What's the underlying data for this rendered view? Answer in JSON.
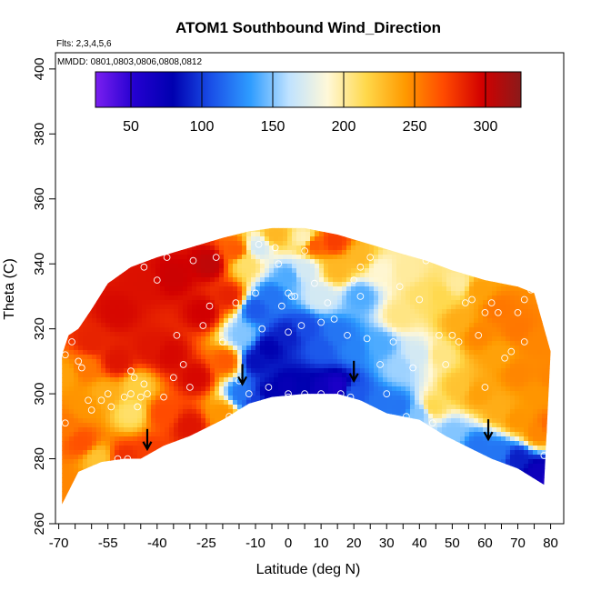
{
  "chart_data": {
    "type": "heatmap",
    "title": "ATOM1 Southbound Wind_Direction",
    "notes": [
      "Flts: 2,3,4,5,6",
      "MMDD: 0801,0803,0806,0808,0812"
    ],
    "xlabel": "Latitude (deg N)",
    "ylabel": "Theta (C)",
    "xlim": [
      -71,
      84
    ],
    "ylim": [
      260,
      405
    ],
    "x_ticks": [
      -70,
      -55,
      -40,
      -25,
      -10,
      0,
      10,
      20,
      30,
      40,
      50,
      60,
      70,
      80
    ],
    "x_minor_every": 5,
    "y_ticks": [
      260,
      280,
      300,
      320,
      340,
      360,
      380,
      400
    ],
    "colorbar": {
      "range": [
        25,
        325
      ],
      "ticks": [
        50,
        100,
        150,
        200,
        250,
        300
      ],
      "palette": [
        "#7a1ff0",
        "#2400d0",
        "#0000b0",
        "#1a50e8",
        "#2e9cff",
        "#bfe2ff",
        "#fff8d8",
        "#ffd84a",
        "#ff9a00",
        "#ff4a00",
        "#d20000",
        "#8b1a1a"
      ]
    },
    "data_upper_boundary": [
      [
        -69,
        312
      ],
      [
        -67,
        318
      ],
      [
        -64,
        320
      ],
      [
        -60,
        326
      ],
      [
        -55,
        334
      ],
      [
        -48,
        339
      ],
      [
        -40,
        342
      ],
      [
        -30,
        345
      ],
      [
        -20,
        348
      ],
      [
        -12,
        350
      ],
      [
        -5,
        351
      ],
      [
        5,
        351
      ],
      [
        15,
        349
      ],
      [
        25,
        346
      ],
      [
        35,
        343
      ],
      [
        42,
        341
      ],
      [
        50,
        338
      ],
      [
        60,
        335
      ],
      [
        70,
        333
      ],
      [
        75,
        331
      ],
      [
        80,
        313
      ]
    ],
    "data_lower_boundary": [
      [
        -69,
        266
      ],
      [
        -64,
        276
      ],
      [
        -57,
        279
      ],
      [
        -50,
        280
      ],
      [
        -45,
        280
      ],
      [
        -38,
        284
      ],
      [
        -30,
        287
      ],
      [
        -20,
        292
      ],
      [
        -12,
        297
      ],
      [
        -5,
        299
      ],
      [
        5,
        300
      ],
      [
        15,
        300
      ],
      [
        22,
        298
      ],
      [
        30,
        294
      ],
      [
        40,
        292
      ],
      [
        48,
        287
      ],
      [
        56,
        283
      ],
      [
        62,
        280
      ],
      [
        70,
        277
      ],
      [
        78,
        272
      ]
    ],
    "field_samples": [
      {
        "x": -68,
        "y": 272,
        "v": 250
      },
      {
        "x": -68,
        "y": 290,
        "v": 255
      },
      {
        "x": -68,
        "y": 306,
        "v": 240
      },
      {
        "x": -63,
        "y": 285,
        "v": 268
      },
      {
        "x": -62,
        "y": 296,
        "v": 245
      },
      {
        "x": -62,
        "y": 308,
        "v": 255
      },
      {
        "x": -60,
        "y": 316,
        "v": 285
      },
      {
        "x": -58,
        "y": 280,
        "v": 225
      },
      {
        "x": -56,
        "y": 300,
        "v": 235
      },
      {
        "x": -52,
        "y": 310,
        "v": 290
      },
      {
        "x": -52,
        "y": 325,
        "v": 295
      },
      {
        "x": -50,
        "y": 280,
        "v": 280
      },
      {
        "x": -48,
        "y": 294,
        "v": 210
      },
      {
        "x": -46,
        "y": 302,
        "v": 220
      },
      {
        "x": -44,
        "y": 334,
        "v": 292
      },
      {
        "x": -42,
        "y": 282,
        "v": 275
      },
      {
        "x": -42,
        "y": 314,
        "v": 290
      },
      {
        "x": -38,
        "y": 294,
        "v": 270
      },
      {
        "x": -36,
        "y": 312,
        "v": 295
      },
      {
        "x": -35,
        "y": 336,
        "v": 300
      },
      {
        "x": -30,
        "y": 290,
        "v": 290
      },
      {
        "x": -28,
        "y": 305,
        "v": 295
      },
      {
        "x": -26,
        "y": 325,
        "v": 298
      },
      {
        "x": -24,
        "y": 340,
        "v": 305
      },
      {
        "x": -20,
        "y": 294,
        "v": 245
      },
      {
        "x": -19,
        "y": 310,
        "v": 265
      },
      {
        "x": -18,
        "y": 330,
        "v": 285
      },
      {
        "x": -16,
        "y": 344,
        "v": 265
      },
      {
        "x": -14,
        "y": 300,
        "v": 120
      },
      {
        "x": -14,
        "y": 318,
        "v": 150
      },
      {
        "x": -13,
        "y": 340,
        "v": 210
      },
      {
        "x": -10,
        "y": 298,
        "v": 100
      },
      {
        "x": -10,
        "y": 310,
        "v": 85
      },
      {
        "x": -10,
        "y": 326,
        "v": 110
      },
      {
        "x": -9,
        "y": 345,
        "v": 170
      },
      {
        "x": -6,
        "y": 300,
        "v": 80
      },
      {
        "x": -6,
        "y": 314,
        "v": 80
      },
      {
        "x": -5,
        "y": 330,
        "v": 120
      },
      {
        "x": -4,
        "y": 349,
        "v": 230
      },
      {
        "x": 0,
        "y": 302,
        "v": 75
      },
      {
        "x": 0,
        "y": 318,
        "v": 90
      },
      {
        "x": 0,
        "y": 336,
        "v": 140
      },
      {
        "x": 4,
        "y": 302,
        "v": 80
      },
      {
        "x": 5,
        "y": 320,
        "v": 105
      },
      {
        "x": 5,
        "y": 338,
        "v": 170
      },
      {
        "x": 5,
        "y": 348,
        "v": 195
      },
      {
        "x": 10,
        "y": 301,
        "v": 70
      },
      {
        "x": 10,
        "y": 314,
        "v": 110
      },
      {
        "x": 10,
        "y": 330,
        "v": 170
      },
      {
        "x": 8,
        "y": 346,
        "v": 265
      },
      {
        "x": 15,
        "y": 302,
        "v": 60
      },
      {
        "x": 15,
        "y": 318,
        "v": 120
      },
      {
        "x": 15,
        "y": 338,
        "v": 230
      },
      {
        "x": 14,
        "y": 347,
        "v": 275
      },
      {
        "x": 20,
        "y": 300,
        "v": 110
      },
      {
        "x": 20,
        "y": 314,
        "v": 125
      },
      {
        "x": 22,
        "y": 330,
        "v": 140
      },
      {
        "x": 22,
        "y": 342,
        "v": 230
      },
      {
        "x": 28,
        "y": 297,
        "v": 120
      },
      {
        "x": 28,
        "y": 315,
        "v": 140
      },
      {
        "x": 28,
        "y": 338,
        "v": 190
      },
      {
        "x": 34,
        "y": 296,
        "v": 120
      },
      {
        "x": 34,
        "y": 308,
        "v": 155
      },
      {
        "x": 34,
        "y": 324,
        "v": 205
      },
      {
        "x": 36,
        "y": 338,
        "v": 200
      },
      {
        "x": 40,
        "y": 294,
        "v": 150
      },
      {
        "x": 40,
        "y": 312,
        "v": 170
      },
      {
        "x": 41,
        "y": 330,
        "v": 210
      },
      {
        "x": 44,
        "y": 296,
        "v": 215
      },
      {
        "x": 46,
        "y": 312,
        "v": 205
      },
      {
        "x": 46,
        "y": 330,
        "v": 215
      },
      {
        "x": 50,
        "y": 288,
        "v": 150
      },
      {
        "x": 52,
        "y": 302,
        "v": 225
      },
      {
        "x": 52,
        "y": 322,
        "v": 235
      },
      {
        "x": 52,
        "y": 334,
        "v": 200
      },
      {
        "x": 58,
        "y": 284,
        "v": 120
      },
      {
        "x": 58,
        "y": 300,
        "v": 240
      },
      {
        "x": 58,
        "y": 318,
        "v": 250
      },
      {
        "x": 58,
        "y": 332,
        "v": 240
      },
      {
        "x": 64,
        "y": 282,
        "v": 120
      },
      {
        "x": 64,
        "y": 295,
        "v": 235
      },
      {
        "x": 64,
        "y": 312,
        "v": 240
      },
      {
        "x": 64,
        "y": 326,
        "v": 255
      },
      {
        "x": 70,
        "y": 280,
        "v": 90
      },
      {
        "x": 70,
        "y": 292,
        "v": 245
      },
      {
        "x": 70,
        "y": 306,
        "v": 250
      },
      {
        "x": 70,
        "y": 320,
        "v": 255
      },
      {
        "x": 76,
        "y": 276,
        "v": 70
      },
      {
        "x": 76,
        "y": 288,
        "v": 250
      },
      {
        "x": 76,
        "y": 300,
        "v": 245
      },
      {
        "x": 76,
        "y": 316,
        "v": 250
      },
      {
        "x": 80,
        "y": 274,
        "v": 60
      },
      {
        "x": 80,
        "y": 290,
        "v": 260
      },
      {
        "x": 80,
        "y": 305,
        "v": 250
      }
    ],
    "observations": [
      [
        -68,
        291
      ],
      [
        -68,
        312
      ],
      [
        -66,
        316
      ],
      [
        -64,
        310
      ],
      [
        -63,
        308
      ],
      [
        -61,
        298
      ],
      [
        -60,
        295
      ],
      [
        -59,
        277
      ],
      [
        -57,
        298
      ],
      [
        -55,
        300
      ],
      [
        -54,
        296
      ],
      [
        -52,
        280
      ],
      [
        -50,
        299
      ],
      [
        -49,
        280
      ],
      [
        -48,
        300
      ],
      [
        -48,
        307
      ],
      [
        -47,
        305
      ],
      [
        -46,
        296
      ],
      [
        -45,
        299
      ],
      [
        -44,
        303
      ],
      [
        -44,
        339
      ],
      [
        -43,
        300
      ],
      [
        -40,
        335
      ],
      [
        -38,
        299
      ],
      [
        -37,
        342
      ],
      [
        -35,
        305
      ],
      [
        -34,
        318
      ],
      [
        -32,
        309
      ],
      [
        -30,
        302
      ],
      [
        -29,
        341
      ],
      [
        -26,
        321
      ],
      [
        -24,
        327
      ],
      [
        -22,
        342
      ],
      [
        -20,
        316
      ],
      [
        -18,
        293
      ],
      [
        -16,
        328
      ],
      [
        -15,
        304
      ],
      [
        -12,
        300
      ],
      [
        -10,
        331
      ],
      [
        -9,
        346
      ],
      [
        -8,
        320
      ],
      [
        -6,
        302
      ],
      [
        -4,
        345
      ],
      [
        -3,
        340
      ],
      [
        -2,
        327
      ],
      [
        0,
        300
      ],
      [
        0,
        319
      ],
      [
        0,
        331
      ],
      [
        0,
        299
      ],
      [
        1,
        330
      ],
      [
        2,
        330
      ],
      [
        4,
        321
      ],
      [
        5,
        300
      ],
      [
        5,
        344
      ],
      [
        8,
        334
      ],
      [
        10,
        300
      ],
      [
        10,
        322
      ],
      [
        12,
        328
      ],
      [
        14,
        323
      ],
      [
        16,
        300
      ],
      [
        18,
        318
      ],
      [
        19,
        299
      ],
      [
        20,
        335
      ],
      [
        22,
        330
      ],
      [
        22,
        339
      ],
      [
        24,
        317
      ],
      [
        25,
        342
      ],
      [
        28,
        309
      ],
      [
        30,
        300
      ],
      [
        32,
        316
      ],
      [
        34,
        333
      ],
      [
        36,
        293
      ],
      [
        38,
        308
      ],
      [
        40,
        329
      ],
      [
        42,
        341
      ],
      [
        44,
        291
      ],
      [
        46,
        318
      ],
      [
        48,
        309
      ],
      [
        50,
        318
      ],
      [
        52,
        316
      ],
      [
        54,
        328
      ],
      [
        56,
        329
      ],
      [
        58,
        318
      ],
      [
        60,
        302
      ],
      [
        60,
        325
      ],
      [
        62,
        328
      ],
      [
        64,
        325
      ],
      [
        66,
        311
      ],
      [
        68,
        313
      ],
      [
        70,
        325
      ],
      [
        72,
        329
      ],
      [
        72,
        316
      ],
      [
        74,
        332
      ],
      [
        78,
        281
      ],
      [
        80,
        288
      ]
    ],
    "arrows": [
      [
        -43,
        283
      ],
      [
        -14,
        303
      ],
      [
        20,
        304
      ],
      [
        61,
        286
      ]
    ]
  }
}
